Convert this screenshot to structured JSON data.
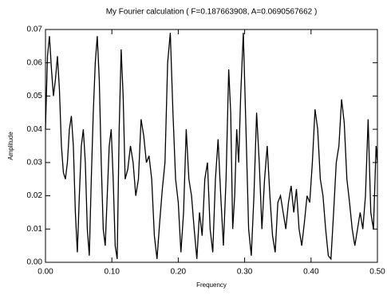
{
  "chart_data": {
    "type": "line",
    "title": "My Fourier calculation ( F=0.187663908, A=0.0690567662 )",
    "xlabel": "Frequency",
    "ylabel": "Amplitude",
    "color": "#000000",
    "x": [
      0.0,
      0.003,
      0.006,
      0.009,
      0.012,
      0.015,
      0.018,
      0.021,
      0.024,
      0.027,
      0.03,
      0.033,
      0.036,
      0.039,
      0.042,
      0.045,
      0.048,
      0.051,
      0.054,
      0.057,
      0.06,
      0.063,
      0.066,
      0.069,
      0.072,
      0.075,
      0.078,
      0.081,
      0.084,
      0.087,
      0.09,
      0.093,
      0.096,
      0.099,
      0.102,
      0.105,
      0.108,
      0.111,
      0.114,
      0.117,
      0.12,
      0.124,
      0.128,
      0.132,
      0.136,
      0.14,
      0.144,
      0.148,
      0.152,
      0.156,
      0.16,
      0.164,
      0.168,
      0.172,
      0.176,
      0.18,
      0.184,
      0.188,
      0.192,
      0.196,
      0.2,
      0.204,
      0.208,
      0.212,
      0.216,
      0.22,
      0.224,
      0.228,
      0.232,
      0.236,
      0.24,
      0.244,
      0.248,
      0.252,
      0.256,
      0.26,
      0.264,
      0.268,
      0.272,
      0.276,
      0.279,
      0.282,
      0.285,
      0.288,
      0.291,
      0.294,
      0.298,
      0.302,
      0.306,
      0.31,
      0.314,
      0.318,
      0.322,
      0.326,
      0.33,
      0.334,
      0.338,
      0.342,
      0.346,
      0.35,
      0.354,
      0.358,
      0.362,
      0.366,
      0.37,
      0.374,
      0.378,
      0.382,
      0.386,
      0.39,
      0.394,
      0.398,
      0.402,
      0.406,
      0.41,
      0.414,
      0.418,
      0.422,
      0.426,
      0.43,
      0.434,
      0.438,
      0.442,
      0.446,
      0.45,
      0.454,
      0.458,
      0.462,
      0.466,
      0.47,
      0.474,
      0.478,
      0.482,
      0.486,
      0.49,
      0.494,
      0.498,
      0.5
    ],
    "values": [
      0.04,
      0.062,
      0.068,
      0.058,
      0.05,
      0.055,
      0.062,
      0.052,
      0.035,
      0.027,
      0.025,
      0.03,
      0.04,
      0.044,
      0.035,
      0.015,
      0.003,
      0.02,
      0.035,
      0.04,
      0.03,
      0.01,
      0.002,
      0.025,
      0.045,
      0.06,
      0.068,
      0.055,
      0.03,
      0.01,
      0.005,
      0.02,
      0.035,
      0.04,
      0.025,
      0.005,
      0.001,
      0.04,
      0.064,
      0.05,
      0.025,
      0.028,
      0.035,
      0.03,
      0.02,
      0.025,
      0.043,
      0.038,
      0.03,
      0.032,
      0.025,
      0.008,
      0.001,
      0.012,
      0.022,
      0.03,
      0.06,
      0.069,
      0.045,
      0.025,
      0.018,
      0.003,
      0.015,
      0.04,
      0.025,
      0.02,
      0.01,
      0.001,
      0.015,
      0.008,
      0.025,
      0.03,
      0.01,
      0.003,
      0.025,
      0.037,
      0.02,
      0.005,
      0.025,
      0.058,
      0.045,
      0.01,
      0.02,
      0.04,
      0.03,
      0.05,
      0.069,
      0.04,
      0.01,
      0.002,
      0.02,
      0.045,
      0.03,
      0.01,
      0.025,
      0.035,
      0.02,
      0.008,
      0.003,
      0.018,
      0.02,
      0.015,
      0.01,
      0.018,
      0.023,
      0.015,
      0.022,
      0.01,
      0.005,
      0.012,
      0.02,
      0.018,
      0.03,
      0.046,
      0.04,
      0.025,
      0.02,
      0.01,
      0.002,
      0.001,
      0.015,
      0.03,
      0.035,
      0.049,
      0.042,
      0.025,
      0.018,
      0.01,
      0.005,
      0.01,
      0.015,
      0.01,
      0.02,
      0.043,
      0.015,
      0.01,
      0.035,
      0.03
    ],
    "xlim": [
      0,
      0.5
    ],
    "ylim": [
      0,
      0.07
    ],
    "xticks": [
      {
        "value": 0,
        "label": "0.00"
      },
      {
        "value": 0.1,
        "label": "0.10"
      },
      {
        "value": 0.2,
        "label": "0.20"
      },
      {
        "value": 0.3,
        "label": "0.30"
      },
      {
        "value": 0.4,
        "label": "0.40"
      },
      {
        "value": 0.5,
        "label": "0.50"
      }
    ],
    "yticks": [
      {
        "value": 0,
        "label": "0.00"
      },
      {
        "value": 0.01,
        "label": "0.01"
      },
      {
        "value": 0.02,
        "label": "0.02"
      },
      {
        "value": 0.03,
        "label": "0.03"
      },
      {
        "value": 0.04,
        "label": "0.04"
      },
      {
        "value": 0.05,
        "label": "0.05"
      },
      {
        "value": 0.06,
        "label": "0.06"
      },
      {
        "value": 0.07,
        "label": "0.07"
      }
    ]
  }
}
